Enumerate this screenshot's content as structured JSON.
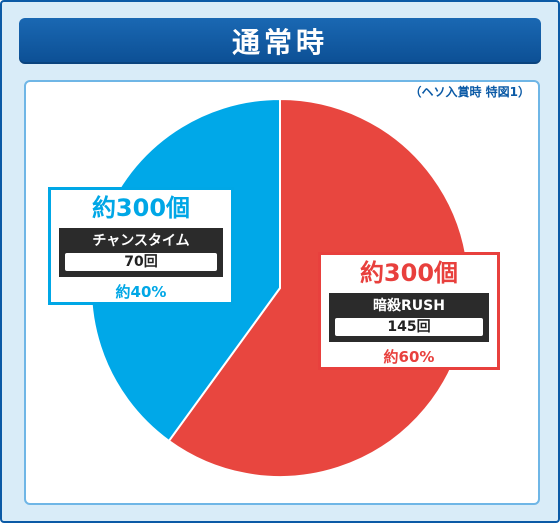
{
  "header": {
    "title": "通常時"
  },
  "note": "（ヘソ入賞時 特図1）",
  "chart_data": {
    "type": "pie",
    "slices": [
      {
        "label": "暗殺RUSH",
        "balls": "約300個",
        "count": "145回",
        "percent_label": "約60%",
        "value": 60,
        "color": "#e8463f"
      },
      {
        "label": "チャンスタイム",
        "balls": "約300個",
        "count": "70回",
        "percent_label": "約40%",
        "value": 40,
        "color": "#00a8e8"
      }
    ]
  }
}
